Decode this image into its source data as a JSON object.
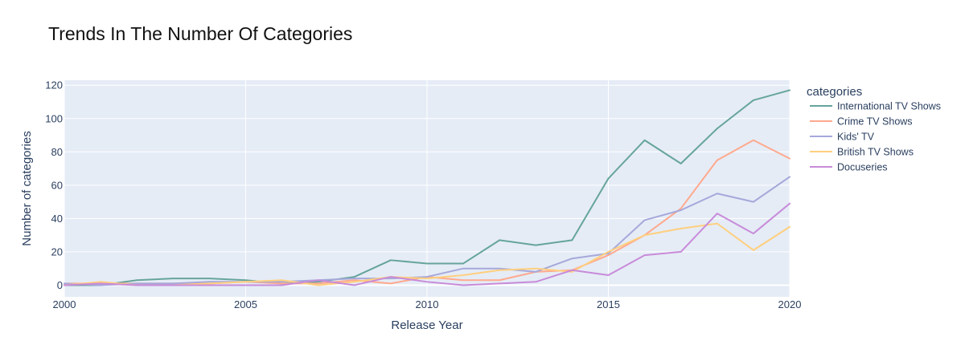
{
  "chart_data": {
    "type": "line",
    "title": "Trends In The Number Of Categories",
    "xlabel": "Release Year",
    "ylabel": "Number of categories",
    "legend_title": "categories",
    "legend_position": "right",
    "grid": true,
    "xlim": [
      2000,
      2020
    ],
    "ylim": [
      -7,
      123
    ],
    "xticks": [
      2000,
      2005,
      2010,
      2015,
      2020
    ],
    "yticks": [
      0,
      20,
      40,
      60,
      80,
      100,
      120
    ],
    "background": "#e5ecf6",
    "x": [
      2000,
      2001,
      2002,
      2003,
      2004,
      2005,
      2006,
      2007,
      2008,
      2009,
      2010,
      2011,
      2012,
      2013,
      2014,
      2015,
      2016,
      2017,
      2018,
      2019,
      2020
    ],
    "series": [
      {
        "name": "International TV Shows",
        "color": "#66a49c",
        "values": [
          0,
          0,
          3,
          4,
          4,
          3,
          1,
          2,
          5,
          15,
          13,
          13,
          27,
          24,
          27,
          64,
          87,
          73,
          94,
          111,
          117
        ]
      },
      {
        "name": "Crime TV Shows",
        "color": "#ffa98e",
        "values": [
          1,
          1,
          1,
          1,
          1,
          2,
          1,
          1,
          3,
          1,
          5,
          3,
          3,
          8,
          9,
          18,
          30,
          46,
          75,
          87,
          76
        ]
      },
      {
        "name": "Kids' TV",
        "color": "#a6a8da",
        "values": [
          1,
          0,
          1,
          1,
          2,
          2,
          2,
          3,
          4,
          4,
          5,
          10,
          10,
          8,
          16,
          19,
          39,
          45,
          55,
          50,
          65
        ]
      },
      {
        "name": "British TV Shows",
        "color": "#ffcf7e",
        "values": [
          0,
          2,
          0,
          0,
          1,
          2,
          3,
          0,
          2,
          5,
          4,
          6,
          9,
          10,
          8,
          20,
          30,
          34,
          37,
          21,
          35
        ]
      },
      {
        "name": "Docuseries",
        "color": "#c88bd9",
        "values": [
          0,
          1,
          0,
          0,
          0,
          0,
          0,
          3,
          0,
          5,
          2,
          0,
          1,
          2,
          9,
          6,
          18,
          20,
          43,
          31,
          49
        ]
      }
    ]
  }
}
